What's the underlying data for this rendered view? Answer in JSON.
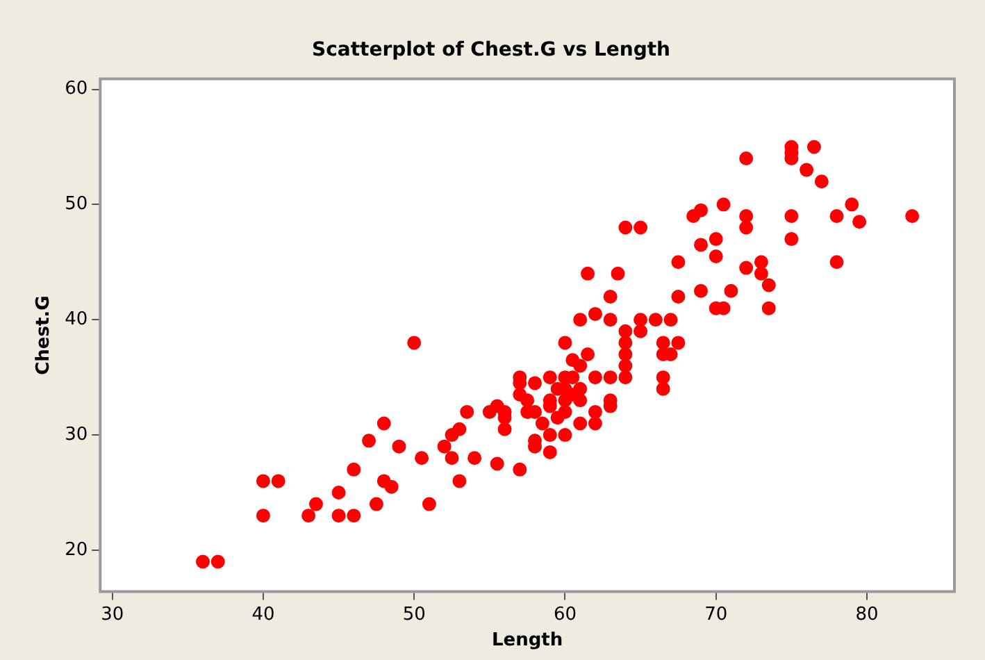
{
  "chart_data": {
    "type": "scatter",
    "title": "Scatterplot of Chest.G vs Length",
    "xlabel": "Length",
    "ylabel": "Chest.G",
    "marker": "circle",
    "grid": false,
    "legend": false,
    "xlim": [
      29.2,
      85.8
    ],
    "ylim": [
      16.4,
      60.9
    ],
    "xticks": [
      30,
      40,
      50,
      60,
      70,
      80
    ],
    "yticks": [
      20,
      30,
      40,
      50,
      60
    ],
    "series": [
      {
        "color": "#ff0000",
        "x": [
          36,
          37,
          40,
          41,
          40,
          43,
          43.5,
          45,
          45,
          46,
          46,
          47,
          47.5,
          48,
          48,
          48.5,
          49,
          50,
          50.5,
          51,
          52,
          52.5,
          52.5,
          53,
          53,
          53.5,
          54,
          55,
          55.5,
          55.5,
          56,
          56,
          56,
          57,
          57,
          57,
          57,
          57.5,
          57.5,
          58,
          58,
          58,
          58,
          58.5,
          59,
          59,
          59,
          59,
          59,
          59.5,
          59.5,
          60,
          60,
          60,
          60,
          60,
          60,
          60.5,
          60.5,
          60.5,
          61,
          61,
          61,
          61,
          61,
          61.5,
          61.5,
          62,
          62,
          62,
          62,
          63,
          63,
          63,
          63,
          63,
          63.5,
          64,
          64,
          64,
          64,
          64,
          64,
          65,
          65,
          65,
          66,
          66.5,
          66.5,
          66.5,
          66.5,
          67,
          67,
          67.5,
          67.5,
          67.5,
          68.5,
          69,
          69,
          69,
          70,
          70,
          70,
          70.5,
          70.5,
          71,
          72,
          72,
          72,
          72,
          73,
          73,
          73.5,
          73.5,
          75,
          75,
          75,
          75,
          75,
          76,
          76.5,
          77,
          78,
          78,
          79,
          79.5,
          83
        ],
        "values": [
          19,
          19,
          26,
          26,
          23,
          23,
          24,
          25,
          23,
          23,
          27,
          29.5,
          24,
          31,
          26,
          25.5,
          29,
          38,
          28,
          24,
          29,
          28,
          30,
          26,
          30.5,
          32,
          28,
          32,
          32.5,
          27.5,
          30.5,
          32,
          31.5,
          35,
          34.5,
          33.5,
          27,
          33,
          32,
          32,
          34.5,
          29.5,
          29,
          31,
          35,
          33,
          32.5,
          30,
          28.5,
          34,
          31.5,
          38,
          35,
          34,
          33,
          32,
          30,
          36.5,
          35,
          33.5,
          36,
          34,
          33,
          31,
          40,
          37,
          44,
          35,
          32,
          31,
          40.5,
          42,
          40,
          35,
          33,
          32.5,
          44,
          48,
          39,
          38,
          37,
          36,
          35,
          48,
          40,
          39,
          40,
          35,
          34,
          38,
          37,
          40,
          37,
          45,
          42,
          38,
          49,
          49.5,
          46.5,
          42.5,
          47,
          45.5,
          41,
          50,
          41,
          42.5,
          54,
          49,
          48,
          44.5,
          45,
          44,
          43,
          41,
          55,
          54.5,
          54,
          49,
          47,
          53,
          55,
          52,
          49,
          45,
          50,
          48.5,
          49
        ]
      }
    ]
  }
}
